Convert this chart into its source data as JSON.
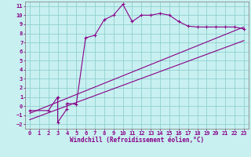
{
  "bg_color": "#c8f0f0",
  "grid_color": "#90d0d0",
  "line_color": "#880088",
  "xlabel": "Windchill (Refroidissement éolien,°C)",
  "xlim": [
    -0.5,
    23.5
  ],
  "ylim": [
    -2.5,
    11.5
  ],
  "xticks": [
    0,
    1,
    2,
    3,
    4,
    5,
    6,
    7,
    8,
    9,
    10,
    11,
    12,
    13,
    14,
    15,
    16,
    17,
    18,
    19,
    20,
    21,
    22,
    23
  ],
  "yticks": [
    -2,
    -1,
    0,
    1,
    2,
    3,
    4,
    5,
    6,
    7,
    8,
    9,
    10,
    11
  ],
  "curve_x": [
    0,
    2,
    3,
    3,
    4,
    4,
    5,
    6,
    7,
    8,
    9,
    10,
    11,
    12,
    13,
    14,
    15,
    16,
    17,
    18,
    19,
    20,
    21,
    22,
    23
  ],
  "curve_y": [
    -0.5,
    -0.5,
    1.0,
    -1.8,
    -0.3,
    0.3,
    0.2,
    7.5,
    7.8,
    9.5,
    10.0,
    11.2,
    9.3,
    10.0,
    10.0,
    10.2,
    10.0,
    9.3,
    8.8,
    8.7,
    8.7,
    8.7,
    8.7,
    8.7,
    8.5
  ],
  "line1_x": [
    0,
    23
  ],
  "line1_y": [
    -0.8,
    8.7
  ],
  "line2_x": [
    0,
    23
  ],
  "line2_y": [
    -1.5,
    7.2
  ],
  "tick_fontsize": 5,
  "xlabel_fontsize": 5.5
}
